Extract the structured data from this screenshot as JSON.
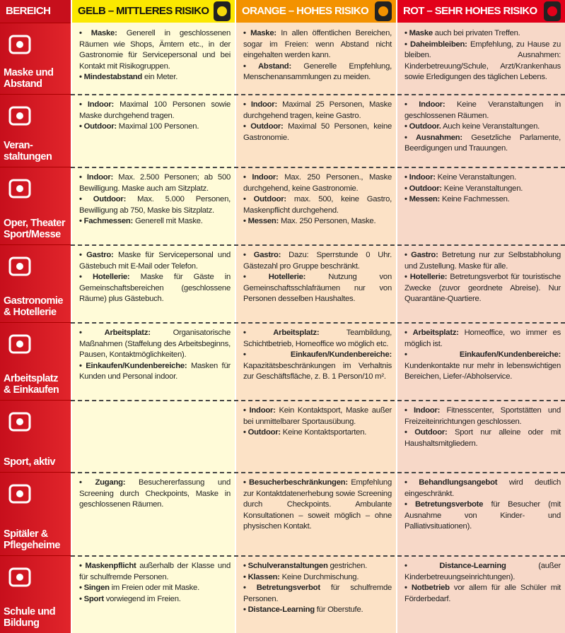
{
  "header": {
    "bereich": "BEREICH",
    "columns": [
      "GELB – MITTLERES RISIKO",
      "ORANGE – HOHES RISIKO",
      "ROT – SEHR HOHES RISIKO"
    ]
  },
  "rows": [
    {
      "label": "Maske und\nAbstand",
      "cells": [
        [
          {
            "bold": "Maske:",
            "text": "Generell in geschlossenen Räumen wie Shops, Ämtern etc., in der Gastronomie für Servicepersonal und bei Kontakt mit Risikogruppen."
          },
          {
            "bold": "Mindestabstand",
            "text": "ein Meter."
          }
        ],
        [
          {
            "bold": "Maske:",
            "text": "In allen öffentlichen Bereichen, sogar im Freien: wenn Abstand nicht eingehalten werden kann."
          },
          {
            "bold": "Abstand:",
            "text": "Generelle Empfehlung, Menschenansammlungen zu meiden."
          }
        ],
        [
          {
            "bold": "Maske",
            "text": "auch bei privaten Treffen."
          },
          {
            "bold": "Daheimbleiben:",
            "text": "Empfehlung, zu Hause zu bleiben. Ausnahmen: Kinderbetreuung/Schule, Arzt/Krankenhaus sowie Erledigungen des täglichen Lebens."
          }
        ]
      ]
    },
    {
      "label": "Veran-\nstaltungen",
      "cells": [
        [
          {
            "bold": "Indoor:",
            "text": "Maximal 100 Personen sowie Maske durchgehend tragen."
          },
          {
            "bold": "Outdoor:",
            "text": "Maximal 100 Personen."
          }
        ],
        [
          {
            "bold": "Indoor:",
            "text": "Maximal 25 Personen, Maske durchgehend tragen, keine Gastro."
          },
          {
            "bold": "Outdoor:",
            "text": "Maximal 50 Personen, keine Gastronomie."
          }
        ],
        [
          {
            "bold": "Indoor:",
            "text": "Keine Veranstaltungen in geschlossenen Räumen."
          },
          {
            "bold": "Outdoor.",
            "text": "Auch keine Veranstaltungen."
          },
          {
            "bold": "Ausnahmen:",
            "text": "Gesetzliche Parlamente, Beerdigungen und Trauungen."
          }
        ]
      ]
    },
    {
      "label": "Oper, Theater\nSport/Messe",
      "cells": [
        [
          {
            "bold": "Indoor:",
            "text": "Max. 2.500 Personen; ab 500 Bewilligung. Maske auch am Sitzplatz."
          },
          {
            "bold": "Outdoor:",
            "text": "Max. 5.000 Personen, Bewilligung ab 750, Maske bis Sitzplatz."
          },
          {
            "bold": "Fachmessen:",
            "text": "Generell mit Maske."
          }
        ],
        [
          {
            "bold": "Indoor:",
            "text": "Max. 250 Personen., Maske durchgehend, keine Gastronomie."
          },
          {
            "bold": "Outdoor:",
            "text": "max. 500, keine Gastro, Maskenpflicht durchgehend."
          },
          {
            "bold": "Messen:",
            "text": "Max. 250 Personen, Maske."
          }
        ],
        [
          {
            "bold": "Indoor:",
            "text": "Keine Veranstaltungen."
          },
          {
            "bold": "Outdoor:",
            "text": "Keine Veranstaltungen."
          },
          {
            "bold": "Messen:",
            "text": "Keine Fachmessen."
          }
        ]
      ]
    },
    {
      "label": "Gastronomie\n& Hotellerie",
      "cells": [
        [
          {
            "bold": "Gastro:",
            "text": "Maske für Servicepersonal und Gästebuch mit E-Mail oder Telefon."
          },
          {
            "bold": "Hotellerie:",
            "text": "Maske für Gäste in Gemeinschaftsbereichen (geschlossene Räume) plus Gästebuch."
          }
        ],
        [
          {
            "bold": "Gastro:",
            "text": "Dazu: Sperrstunde 0 Uhr. Gästezahl pro Gruppe beschränkt."
          },
          {
            "bold": "Hotellerie:",
            "text": "Nutzung von Gemeinschaftsschlafräumen nur von Personen desselben Haushaltes."
          }
        ],
        [
          {
            "bold": "Gastro:",
            "text": "Betretung nur zur Selbstabholung und Zustellung. Maske für alle."
          },
          {
            "bold": "Hotellerie:",
            "text": "Betretungsverbot für touristische Zwecke (zuvor geordnete Abreise). Nur Quarantäne-Quartiere."
          }
        ]
      ]
    },
    {
      "label": "Arbeitsplatz\n& Einkaufen",
      "cells": [
        [
          {
            "bold": "Arbeitsplatz:",
            "text": "Organisatorische Maßnahmen (Staffelung des Arbeitsbeginns, Pausen, Kontaktmöglichkeiten)."
          },
          {
            "bold": "Einkaufen/Kundenbereiche:",
            "text": "Masken für Kunden und Personal indoor."
          }
        ],
        [
          {
            "bold": "Arbeitsplatz:",
            "text": "Teambildung, Schichtbetrieb, Homeoffice wo möglich etc."
          },
          {
            "bold": "Einkaufen/Kundenbereiche:",
            "text": "Kapazitätsbeschränkungen im Verhaltnis zur Geschäftsfläche, z. B. 1 Person/10 m²."
          }
        ],
        [
          {
            "bold": "Arbeitsplatz:",
            "text": "Homeoffice, wo immer es möglich ist."
          },
          {
            "bold": "Einkaufen/Kundenbereiche:",
            "text": "Kundenkontakte nur mehr in lebenswichtigen Bereichen, Liefer-/Abholservice."
          }
        ]
      ]
    },
    {
      "label": "Sport, aktiv",
      "cells": [
        [],
        [
          {
            "bold": "Indoor:",
            "text": "Kein Kontaktsport, Maske außer bei unmittelbarer Sportausübung."
          },
          {
            "bold": "Outdoor:",
            "text": "Keine Kontaktsportarten."
          }
        ],
        [
          {
            "bold": "Indoor:",
            "text": "Fitnesscenter, Sportstätten und Freizeiteinrichtungen geschlossen."
          },
          {
            "bold": "Outdoor:",
            "text": "Sport nur alleine oder mit Haushaltsmitgliedern."
          }
        ]
      ]
    },
    {
      "label": "Spitäler &\nPflegeheime",
      "cells": [
        [
          {
            "bold": "Zugang:",
            "text": "Besuchererfassung und Screening durch Checkpoints, Maske in geschlossenen Räumen."
          }
        ],
        [
          {
            "bold": "Besucherbeschränkungen:",
            "text": "Empfehlung zur Kontaktdatenerhebung sowie Screening durch Checkpoints. Ambulante Konsultationen – soweit möglich – ohne physischen Kontakt."
          }
        ],
        [
          {
            "bold": "Behandlungsangebot",
            "text": "wird deutlich eingeschränkt."
          },
          {
            "bold": "Betretungsverbote",
            "text": "für Besucher (mit Ausnahme von Kinder- und Palliativsituationen)."
          }
        ]
      ]
    },
    {
      "label": "Schule und\nBildung",
      "cells": [
        [
          {
            "bold": "Maskenpflicht",
            "text": "außerhalb der Klasse und für schulfremde Personen."
          },
          {
            "bold": "Singen",
            "text": "im Freien oder mit Maske."
          },
          {
            "bold": "Sport",
            "text": "vorwiegend im Freien."
          }
        ],
        [
          {
            "bold": "Schulveranstaltungen",
            "text": "gestrichen."
          },
          {
            "bold": "Klassen:",
            "text": "Keine Durchmischung."
          },
          {
            "bold": "Betretungsverbot",
            "text": "für schulfremde Personen."
          },
          {
            "bold": "Distance-Learning",
            "text": "für Oberstufe."
          }
        ],
        [
          {
            "bold": "Distance-Learning",
            "text": "(außer Kinderbetreuungseinrichtungen)."
          },
          {
            "bold": "Notbetrieb",
            "text": "vor allem für alle Schüler mit Förderbedarf."
          }
        ]
      ]
    }
  ]
}
